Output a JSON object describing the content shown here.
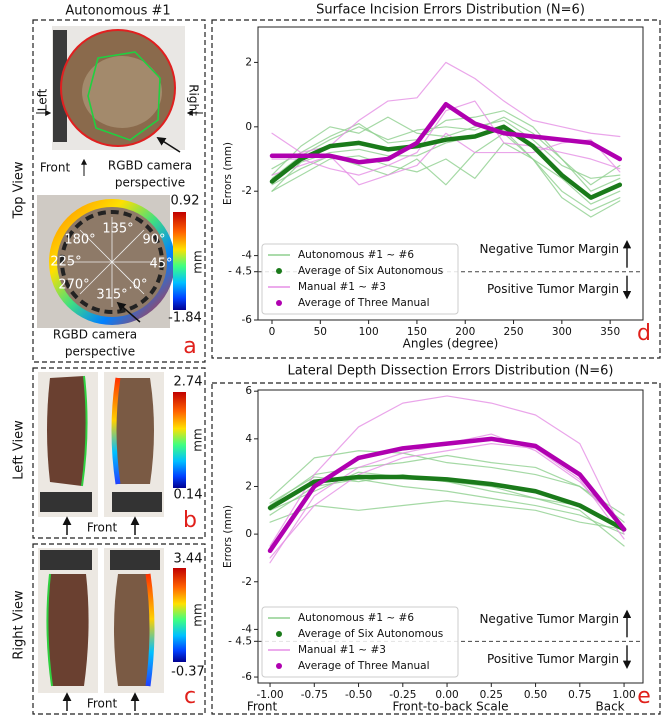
{
  "panels": {
    "a": {
      "title": "Autonomous #1",
      "view": "Top View",
      "left": "Left",
      "right": "Right",
      "front": "Front",
      "camera_top": [
        "RGBD camera",
        "perspective"
      ],
      "angles": [
        "180°",
        "135°",
        "90°",
        "225°",
        "45°",
        "270°",
        ".0°",
        "315°"
      ],
      "cbar_max": "0.92",
      "cbar_min": "-1.84",
      "unit": "mm",
      "camera_bottom": [
        "RGBD camera",
        "perspective"
      ],
      "letter": "a"
    },
    "b": {
      "view": "Left View",
      "cbar_max": "2.74",
      "cbar_min": "0.14",
      "unit": "mm",
      "front": "Front",
      "letter": "b"
    },
    "c": {
      "view": "Right View",
      "cbar_max": "3.44",
      "cbar_min": "-0.37",
      "unit": "mm",
      "front": "Front",
      "letter": "c"
    }
  },
  "chart_data": [
    {
      "type": "line",
      "title": "Surface Incision Errors Distribution (N=6)",
      "xlabel": "Angles (degree)",
      "ylabel": "Errors (mm)",
      "x": [
        0,
        30,
        60,
        90,
        120,
        150,
        180,
        210,
        240,
        270,
        300,
        330,
        360
      ],
      "series": [
        {
          "name": "Autonomous #1 ~ #6",
          "color": "#8fcf8f",
          "values": [
            [
              -1.3,
              -0.8,
              -0.3,
              0.1,
              -0.5,
              -0.4,
              0.2,
              0.3,
              0.5,
              0.0,
              -1.0,
              -1.8,
              -1.2
            ],
            [
              -2.0,
              -1.5,
              -1.0,
              -0.9,
              -1.2,
              -1.4,
              -1.0,
              -1.6,
              -0.5,
              -1.0,
              -2.0,
              -2.6,
              -2.2
            ],
            [
              -1.5,
              -0.6,
              0.0,
              -0.2,
              0.3,
              -0.2,
              -0.3,
              0.0,
              0.2,
              -0.4,
              -1.2,
              -1.6,
              -1.5
            ],
            [
              -1.8,
              -1.3,
              -0.9,
              -1.2,
              -1.5,
              -1.0,
              -1.8,
              -0.8,
              -0.2,
              -1.0,
              -2.2,
              -2.8,
              -2.3
            ],
            [
              -1.6,
              -0.9,
              -0.4,
              0.0,
              -0.4,
              -0.1,
              0.0,
              -0.1,
              0.3,
              -0.2,
              -1.0,
              -2.0,
              -1.6
            ],
            [
              -2.0,
              -1.1,
              -0.8,
              -0.7,
              -0.9,
              -0.9,
              -0.5,
              -0.3,
              -0.1,
              -1.0,
              -1.6,
              -2.4,
              -2.0
            ]
          ]
        },
        {
          "name": "Average of Six Autonomous",
          "color": "#1a7a1a",
          "values": [
            -1.7,
            -1.0,
            -0.6,
            -0.5,
            -0.7,
            -0.6,
            -0.4,
            -0.3,
            0.0,
            -0.6,
            -1.5,
            -2.2,
            -1.8
          ]
        },
        {
          "name": "Manual #1 ~ #3",
          "color": "#e58fe5",
          "values": [
            [
              -0.2,
              -0.8,
              -0.6,
              0.2,
              0.8,
              0.9,
              2.0,
              1.5,
              0.8,
              0.2,
              0.0,
              -0.2,
              -0.3
            ],
            [
              -1.0,
              -1.0,
              -1.3,
              -1.5,
              -1.2,
              -0.8,
              0.5,
              0.8,
              -0.5,
              -0.6,
              -0.8,
              -1.0,
              -1.3
            ],
            [
              -1.5,
              -1.2,
              -0.9,
              -1.8,
              -1.5,
              -1.2,
              -0.2,
              -0.8,
              -0.8,
              -0.8,
              -0.5,
              -0.4,
              -1.4
            ]
          ]
        },
        {
          "name": "Average of Three Manual",
          "color": "#b000b0",
          "values": [
            -0.9,
            -0.9,
            -0.9,
            -1.1,
            -1.0,
            -0.5,
            0.7,
            0.1,
            -0.2,
            -0.3,
            -0.4,
            -0.5,
            -1.0
          ]
        }
      ],
      "xlim": [
        -14.5,
        384
      ],
      "ylim": [
        -6,
        3.1
      ],
      "xticks": [
        0,
        50,
        100,
        150,
        200,
        250,
        300,
        350
      ],
      "yticks": [
        -6,
        -4,
        {
          "value": -4.5,
          "label": "- 4.5"
        },
        -2,
        0,
        2
      ],
      "legend": "lower left",
      "annotations": [
        "Negative Tumor Margin",
        "Positive Tumor Margin"
      ],
      "letter": "d"
    },
    {
      "type": "line",
      "title": "Lateral Depth Dissection Errors Distribution (N=6)",
      "xlabel": "Front-to-back Scale",
      "xlabel_left": "Front",
      "xlabel_right": "Back",
      "ylabel": "Errors (mm)",
      "x": [
        -1,
        -0.75,
        -0.5,
        -0.25,
        0,
        0.25,
        0.5,
        0.75,
        1
      ],
      "series": [
        {
          "name": "Autonomous #1 ~ #6",
          "color": "#8fcf8f",
          "values": [
            [
              1.5,
              3.2,
              3.5,
              3.4,
              3.0,
              2.8,
              2.5,
              2.0,
              0.5
            ],
            [
              0.8,
              2.0,
              2.3,
              2.0,
              1.8,
              1.5,
              1.2,
              0.8,
              0.0
            ],
            [
              1.2,
              2.5,
              2.8,
              3.0,
              3.3,
              3.0,
              2.8,
              2.0,
              0.8
            ],
            [
              0.5,
              1.2,
              1.0,
              1.2,
              1.4,
              1.2,
              1.0,
              0.5,
              0.2
            ],
            [
              1.3,
              2.4,
              2.2,
              2.5,
              2.2,
              2.0,
              1.5,
              1.0,
              -0.5
            ],
            [
              1.0,
              1.8,
              2.6,
              2.4,
              2.2,
              1.8,
              1.5,
              1.2,
              0.3
            ]
          ]
        },
        {
          "name": "Average of Six Autonomous",
          "color": "#1a7a1a",
          "values": [
            1.1,
            2.2,
            2.4,
            2.4,
            2.3,
            2.1,
            1.8,
            1.2,
            0.2
          ]
        },
        {
          "name": "Manual #1 ~ #3",
          "color": "#e58fe5",
          "values": [
            [
              -0.5,
              2.5,
              4.5,
              5.5,
              5.8,
              5.5,
              5.0,
              3.8,
              0.0
            ],
            [
              -1.2,
              1.6,
              2.8,
              3.4,
              3.8,
              4.2,
              3.5,
              2.2,
              0.2
            ],
            [
              -1.0,
              1.2,
              2.5,
              3.2,
              3.5,
              3.8,
              3.6,
              2.3,
              -0.2
            ]
          ]
        },
        {
          "name": "Average of Three Manual",
          "color": "#b000b0",
          "values": [
            -0.7,
            2.0,
            3.2,
            3.6,
            3.8,
            4.0,
            3.7,
            2.5,
            0.2
          ]
        }
      ],
      "xlim": [
        -1.068,
        1.107
      ],
      "ylim": [
        -6.25,
        6.05
      ],
      "xticks": [
        {
          "value": -1,
          "label": "-1.00"
        },
        {
          "value": -0.75,
          "label": "-0.75"
        },
        {
          "value": -0.5,
          "label": "-0.50"
        },
        {
          "value": -0.25,
          "label": "-0.25"
        },
        {
          "value": 0,
          "label": "0.00"
        },
        {
          "value": 0.25,
          "label": "0.25"
        },
        {
          "value": 0.5,
          "label": "0.50"
        },
        {
          "value": 0.75,
          "label": "0.75"
        },
        {
          "value": 1,
          "label": "1.00"
        }
      ],
      "yticks": [
        -6,
        {
          "value": -4.5,
          "label": "- 4.5"
        },
        -4,
        -2,
        0,
        2,
        4,
        6
      ],
      "legend": "lower left",
      "annotations": [
        "Negative Tumor Margin",
        "Positive Tumor Margin"
      ],
      "letter": "e"
    }
  ]
}
